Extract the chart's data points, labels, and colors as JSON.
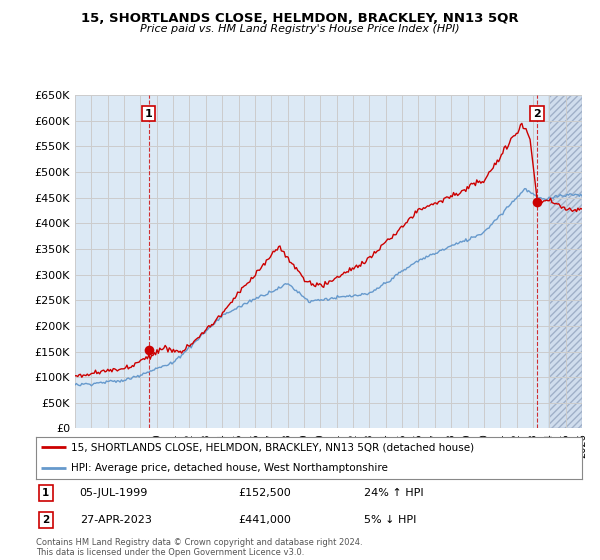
{
  "title": "15, SHORTLANDS CLOSE, HELMDON, BRACKLEY, NN13 5QR",
  "subtitle": "Price paid vs. HM Land Registry's House Price Index (HPI)",
  "legend_line1": "15, SHORTLANDS CLOSE, HELMDON, BRACKLEY, NN13 5QR (detached house)",
  "legend_line2": "HPI: Average price, detached house, West Northamptonshire",
  "transaction1_date": "05-JUL-1999",
  "transaction1_price": "£152,500",
  "transaction1_hpi": "24% ↑ HPI",
  "transaction2_date": "27-APR-2023",
  "transaction2_price": "£441,000",
  "transaction2_hpi": "5% ↓ HPI",
  "footnote": "Contains HM Land Registry data © Crown copyright and database right 2024.\nThis data is licensed under the Open Government Licence v3.0.",
  "ylim": [
    0,
    650000
  ],
  "yticks": [
    0,
    50000,
    100000,
    150000,
    200000,
    250000,
    300000,
    350000,
    400000,
    450000,
    500000,
    550000,
    600000,
    650000
  ],
  "red_line_color": "#cc0000",
  "blue_line_color": "#6699cc",
  "grid_color": "#cccccc",
  "background_color": "#ffffff",
  "plot_bg_color": "#dce9f5",
  "hatch_color": "#c0c8d8"
}
